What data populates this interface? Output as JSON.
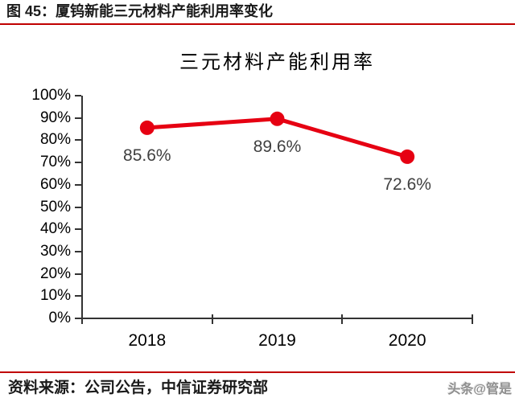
{
  "page": {
    "header_title": "图 45：厦钨新能三元材料产能利用率变化",
    "source_text": "资料来源：公司公告，中信证券研究部",
    "watermark": "头条@管是"
  },
  "colors": {
    "accent_red": "#c00000",
    "axis_color": "#333333"
  },
  "chart_data": {
    "type": "line",
    "title": "三元材料产能利用率",
    "categories": [
      "2018",
      "2019",
      "2020"
    ],
    "values": [
      85.6,
      89.6,
      72.6
    ],
    "data_labels": [
      "85.6%",
      "89.6%",
      "72.6%"
    ],
    "ylim": [
      0,
      100
    ],
    "ytick_step": 10,
    "ytick_labels": [
      "100%",
      "90%",
      "80%",
      "70%",
      "60%",
      "50%",
      "40%",
      "30%",
      "20%",
      "10%",
      "0%"
    ],
    "grid": false,
    "legend": false,
    "marker": "circle",
    "line_color": "#e60012",
    "data_label_color": "#404040"
  }
}
